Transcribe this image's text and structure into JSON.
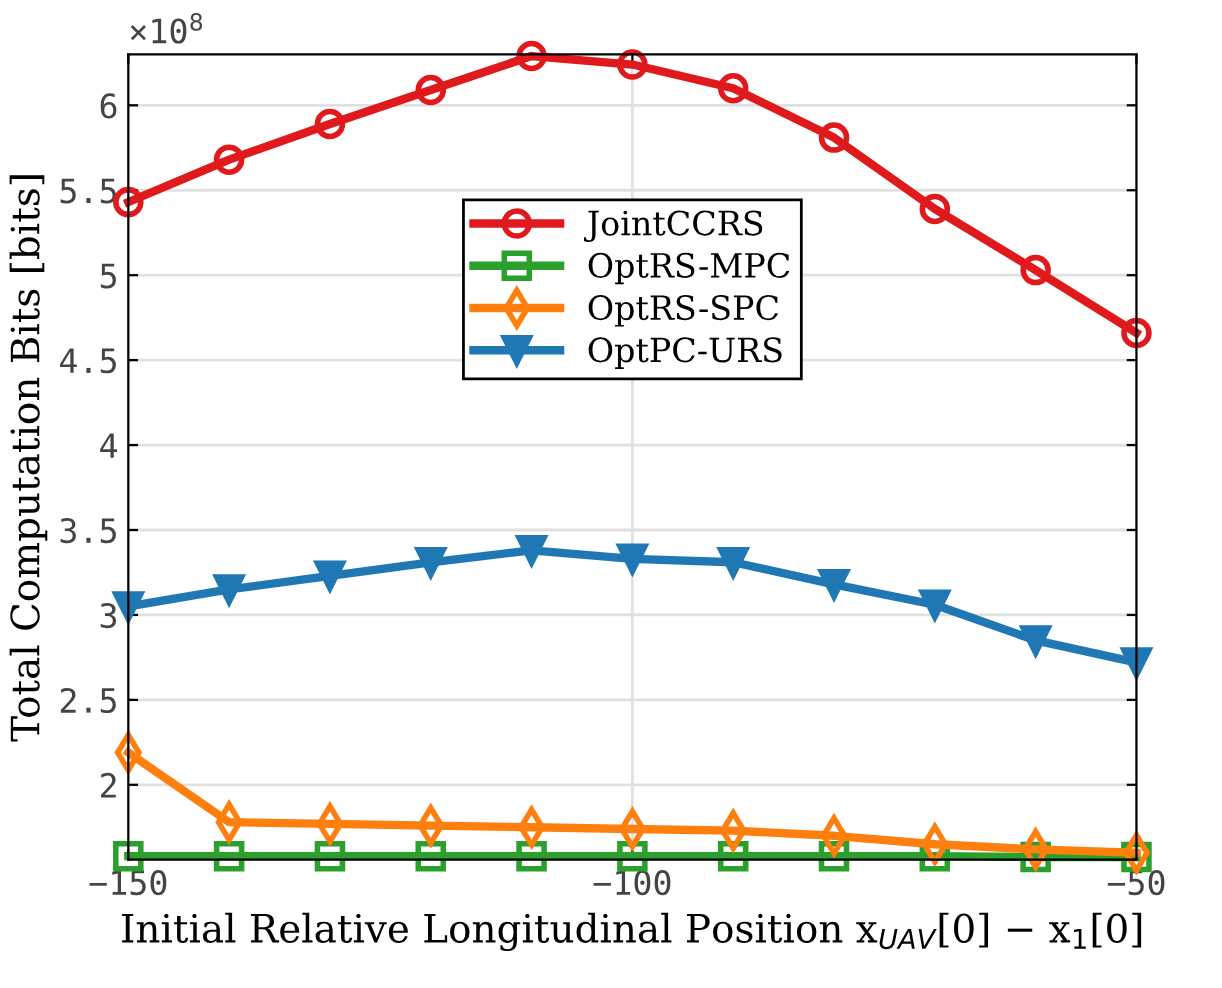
{
  "chart_data": {
    "type": "line",
    "xlabel": "Initial Relative Longitudinal Position x$_{UAV}$[0] − x$_{1}$[0]",
    "ylabel": "Total Computation Bits [bits]",
    "annotations": [
      "×10$^{8}$"
    ],
    "x": [
      -150,
      -140,
      -130,
      -120,
      -110,
      -100,
      -90,
      -80,
      -70,
      -60,
      -50
    ],
    "series": [
      {
        "name": "JointCCRS",
        "color": "#e0191c",
        "marker": "circle",
        "values": [
          5.43,
          5.68,
          5.89,
          6.09,
          6.29,
          6.24,
          6.1,
          5.81,
          5.39,
          5.03,
          4.66
        ]
      },
      {
        "name": "OptRS-MPC",
        "color": "#2ca02c",
        "marker": "square",
        "values": [
          1.58,
          1.58,
          1.58,
          1.58,
          1.58,
          1.58,
          1.58,
          1.58,
          1.58,
          1.575,
          1.575
        ]
      },
      {
        "name": "OptRS-SPC",
        "color": "#ff7f0e",
        "marker": "diamond",
        "values": [
          2.19,
          1.78,
          1.77,
          1.76,
          1.75,
          1.74,
          1.73,
          1.7,
          1.65,
          1.62,
          1.6
        ]
      },
      {
        "name": "OptPC-URS",
        "color": "#1f77b4",
        "marker": "triangle",
        "values": [
          3.05,
          3.15,
          3.23,
          3.31,
          3.38,
          3.33,
          3.31,
          3.18,
          3.06,
          2.85,
          2.72
        ]
      }
    ],
    "xlim": [
      -150,
      -50
    ],
    "xticks": [
      {
        "value": -150,
        "label": "−150"
      },
      {
        "value": -100,
        "label": "−100"
      },
      {
        "value": -50,
        "label": "−50"
      }
    ],
    "ylim": [
      1.56,
      6.3
    ],
    "yticks": [
      2,
      2.5,
      3,
      3.5,
      4,
      4.5,
      5,
      5.5,
      6
    ],
    "grid": true,
    "legend": "top center",
    "line_style": "solid"
  }
}
